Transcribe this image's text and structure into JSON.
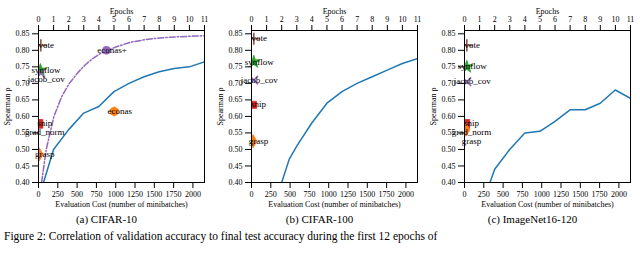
{
  "caption": "Figure 2: Correlation of validation accuracy to final test accuracy during the first 12 epochs of",
  "chart_data": [
    {
      "type": "line",
      "title": "(a) CIFAR-10",
      "x_label": "Evaluation Cost (number of minibatches)",
      "y_label": "Spearman ρ",
      "x2_label": "Epochs",
      "xlim": [
        0,
        2150
      ],
      "xticks": [
        0,
        250,
        500,
        750,
        1000,
        1250,
        1500,
        1750,
        2000
      ],
      "x2lim": [
        0,
        11
      ],
      "x2ticks": [
        0,
        1,
        2,
        3,
        4,
        5,
        6,
        7,
        8,
        9,
        10,
        11
      ],
      "ylim": [
        0.4,
        0.86
      ],
      "yticks": [
        {
          "value": 0.4,
          "label": "0.40"
        },
        {
          "value": 0.45,
          "label": "0.45"
        },
        {
          "value": 0.5,
          "label": "0.50"
        },
        {
          "value": 0.55,
          "label": "0.55"
        },
        {
          "value": 0.6,
          "label": "0.60"
        },
        {
          "value": 0.65,
          "label": "0.65"
        },
        {
          "value": 0.7,
          "label": "0.70"
        },
        {
          "value": 0.75,
          "label": "0.75"
        },
        {
          "value": 0.8,
          "label": "0.80"
        },
        {
          "value": 0.85,
          "label": "0.85"
        }
      ],
      "series": [
        {
          "type": "line",
          "color": "#1f77b4",
          "line_style": "solid",
          "x": [
            65,
            195,
            391,
            586,
            781,
            977,
            1172,
            1367,
            1563,
            1758,
            1953,
            2148
          ],
          "values": [
            0.4,
            0.5,
            0.56,
            0.61,
            0.63,
            0.675,
            0.7,
            0.72,
            0.735,
            0.745,
            0.75,
            0.765
          ]
        },
        {
          "type": "line",
          "color": "#9467bd",
          "line_style": "dashdot",
          "x": [
            40,
            100,
            200,
            300,
            400,
            500,
            600,
            700,
            800,
            900,
            1000,
            1200,
            1400,
            1600,
            1800,
            2000,
            2150
          ],
          "values": [
            0.4,
            0.5,
            0.6,
            0.66,
            0.7,
            0.73,
            0.755,
            0.775,
            0.79,
            0.8,
            0.81,
            0.825,
            0.833,
            0.838,
            0.841,
            0.843,
            0.844
          ]
        },
        {
          "type": "scatter",
          "name": "vote",
          "color": "#8c564b",
          "marker": "plus",
          "x": [
            30
          ],
          "values": [
            0.815
          ]
        },
        {
          "type": "scatter",
          "name": "synflow",
          "color": "#2ca02c",
          "marker": "star",
          "x": [
            25
          ],
          "values": [
            0.74
          ]
        },
        {
          "type": "scatter",
          "name": "jacob_cov",
          "color": "#9467bd",
          "marker": "times",
          "x": [
            30
          ],
          "values": [
            0.73
          ]
        },
        {
          "type": "scatter",
          "name": "snip",
          "color": "#d62728",
          "marker": "square",
          "x": [
            10
          ],
          "values": [
            0.58
          ]
        },
        {
          "type": "scatter",
          "name": "grad_norm",
          "color": "#d62728",
          "marker": "square",
          "x": [
            10
          ],
          "values": [
            0.575
          ]
        },
        {
          "type": "scatter",
          "name": "grasp",
          "color": "#ff7f0e",
          "marker": "diamond",
          "x": [
            10
          ],
          "values": [
            0.485
          ]
        },
        {
          "type": "scatter",
          "name": "econas",
          "color": "#ff7f0e",
          "marker": "hexagon",
          "x": [
            980
          ],
          "values": [
            0.615
          ]
        },
        {
          "type": "scatter",
          "name": "econas+",
          "color": "#9467bd",
          "marker": "circle",
          "x": [
            880
          ],
          "values": [
            0.8
          ]
        }
      ]
    },
    {
      "type": "line",
      "title": "(b) CIFAR-100",
      "x_label": "Evaluation Cost (number of minibatches)",
      "y_label": "Spearman ρ",
      "x2_label": "Epochs",
      "xlim": [
        0,
        2150
      ],
      "xticks": [
        0,
        250,
        500,
        750,
        1000,
        1250,
        1500,
        1750,
        2000
      ],
      "x2lim": [
        0,
        11
      ],
      "x2ticks": [
        0,
        1,
        2,
        3,
        4,
        5,
        6,
        7,
        8,
        9,
        10,
        11
      ],
      "ylim": [
        0.4,
        0.86
      ],
      "yticks": [
        {
          "value": 0.4,
          "label": "0.40"
        },
        {
          "value": 0.45,
          "label": "0.45"
        },
        {
          "value": 0.5,
          "label": "0.50"
        },
        {
          "value": 0.55,
          "label": "0.55"
        },
        {
          "value": 0.6,
          "label": "0.60"
        },
        {
          "value": 0.65,
          "label": "0.65"
        },
        {
          "value": 0.7,
          "label": "0.70"
        },
        {
          "value": 0.75,
          "label": "0.75"
        },
        {
          "value": 0.8,
          "label": "0.80"
        },
        {
          "value": 0.85,
          "label": "0.85"
        }
      ],
      "series": [
        {
          "type": "line",
          "color": "#1f77b4",
          "line_style": "solid",
          "x": [
            391,
            488,
            586,
            781,
            977,
            1172,
            1367,
            1563,
            1758,
            1953,
            2148
          ],
          "values": [
            0.4,
            0.47,
            0.51,
            0.58,
            0.64,
            0.675,
            0.7,
            0.72,
            0.74,
            0.76,
            0.775
          ]
        },
        {
          "type": "scatter",
          "name": "vote",
          "color": "#8c564b",
          "marker": "plus",
          "x": [
            30
          ],
          "values": [
            0.835
          ]
        },
        {
          "type": "scatter",
          "name": "synflow",
          "color": "#2ca02c",
          "marker": "star",
          "x": [
            30
          ],
          "values": [
            0.765
          ]
        },
        {
          "type": "scatter",
          "name": "jacob_cov",
          "color": "#9467bd",
          "marker": "times",
          "x": [
            30
          ],
          "values": [
            0.71
          ]
        },
        {
          "type": "scatter",
          "name": "snip",
          "color": "#d62728",
          "marker": "square",
          "x": [
            20
          ],
          "values": [
            0.635
          ]
        },
        {
          "type": "scatter",
          "name": "grasp",
          "color": "#ff7f0e",
          "marker": "diamond",
          "x": [
            20
          ],
          "values": [
            0.525
          ]
        }
      ]
    },
    {
      "type": "line",
      "title": "(c) ImageNet16-120",
      "x_label": "Evaluation Cost (number of minibatches)",
      "y_label": "Spearman ρ",
      "x2_label": "Epochs",
      "xlim": [
        0,
        2150
      ],
      "xticks": [
        0,
        250,
        500,
        750,
        1000,
        1250,
        1500,
        1750,
        2000
      ],
      "x2lim": [
        0,
        11
      ],
      "x2ticks": [
        0,
        1,
        2,
        3,
        4,
        5,
        6,
        7,
        8,
        9,
        10,
        11
      ],
      "ylim": [
        0.4,
        0.86
      ],
      "yticks": [
        {
          "value": 0.4,
          "label": "0.40"
        },
        {
          "value": 0.45,
          "label": "0.45"
        },
        {
          "value": 0.5,
          "label": "0.50"
        },
        {
          "value": 0.55,
          "label": "0.55"
        },
        {
          "value": 0.6,
          "label": "0.60"
        },
        {
          "value": 0.65,
          "label": "0.65"
        },
        {
          "value": 0.7,
          "label": "0.70"
        },
        {
          "value": 0.75,
          "label": "0.75"
        },
        {
          "value": 0.8,
          "label": "0.80"
        },
        {
          "value": 0.85,
          "label": "0.85"
        }
      ],
      "series": [
        {
          "type": "line",
          "color": "#1f77b4",
          "line_style": "solid",
          "x": [
            330,
            391,
            586,
            781,
            977,
            1172,
            1367,
            1563,
            1758,
            1953,
            2148
          ],
          "values": [
            0.4,
            0.44,
            0.5,
            0.55,
            0.555,
            0.585,
            0.62,
            0.62,
            0.64,
            0.68,
            0.655
          ]
        },
        {
          "type": "scatter",
          "name": "vote",
          "color": "#8c564b",
          "marker": "plus",
          "x": [
            30
          ],
          "values": [
            0.815
          ]
        },
        {
          "type": "scatter",
          "name": "synflow",
          "color": "#2ca02c",
          "marker": "star",
          "x": [
            30
          ],
          "values": [
            0.75
          ]
        },
        {
          "type": "scatter",
          "name": "jacob_cov",
          "color": "#9467bd",
          "marker": "times",
          "x": [
            30
          ],
          "values": [
            0.705
          ]
        },
        {
          "type": "scatter",
          "name": "snip",
          "color": "#d62728",
          "marker": "square",
          "x": [
            20
          ],
          "values": [
            0.58
          ]
        },
        {
          "type": "scatter",
          "name": "grad_norm",
          "color": "#d62728",
          "marker": "square",
          "x": [
            20
          ],
          "values": [
            0.575
          ]
        },
        {
          "type": "scatter",
          "name": "grasp",
          "color": "#ff7f0e",
          "marker": "diamond",
          "x": [
            20
          ],
          "values": [
            0.56
          ]
        }
      ]
    }
  ]
}
